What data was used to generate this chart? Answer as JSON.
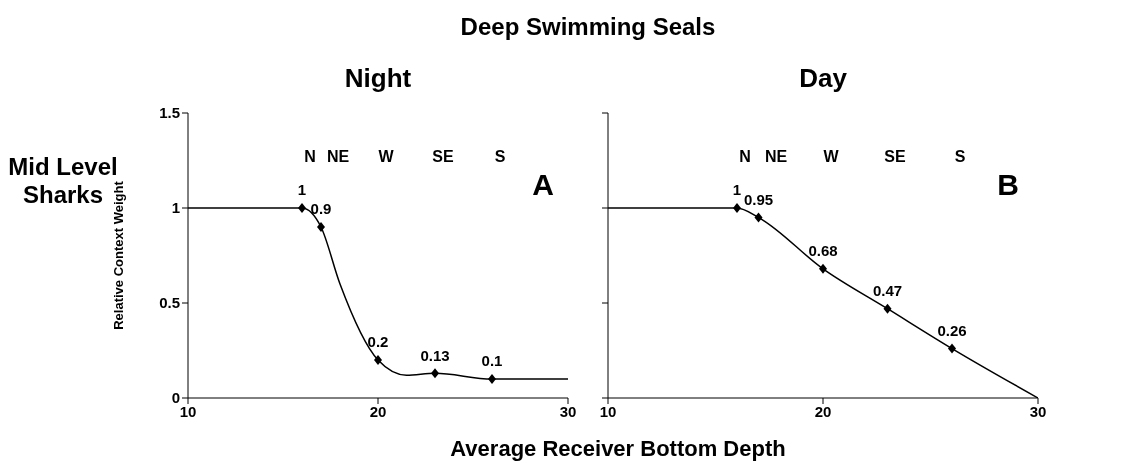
{
  "chart_data": [
    {
      "type": "line",
      "title": "Night",
      "xlabel": "Average Receiver Bottom Depth",
      "ylabel": "Relative Context Weight",
      "xlim": [
        10,
        30
      ],
      "xticks": [
        10,
        20,
        30
      ],
      "ylim": [
        0,
        1.5
      ],
      "yticks": [
        0,
        0.5,
        1,
        1.5
      ],
      "grid": false,
      "legend": false,
      "series": [
        {
          "color": "#000000",
          "marker": "none",
          "x": [
            10,
            16,
            17,
            18,
            20,
            21.5,
            23,
            26,
            30
          ],
          "values": [
            1,
            1,
            0.9,
            0.6,
            0.2,
            0.12,
            0.13,
            0.1,
            0.1
          ]
        },
        {
          "type": "scatter",
          "color": "#000000",
          "marker": "diamond",
          "x": [
            16,
            17,
            20,
            23,
            26
          ],
          "values": [
            1,
            0.9,
            0.2,
            0.13,
            0.1
          ],
          "value_labels": [
            "1",
            "0.9",
            "0.2",
            "0.13",
            "0.1"
          ]
        }
      ],
      "annotations": [
        "Deep Swimming Seals",
        "Mid Level Sharks",
        "A",
        "N",
        "NE",
        "W",
        "SE",
        "S"
      ]
    },
    {
      "type": "line",
      "title": "Day",
      "xlim": [
        10,
        30
      ],
      "xticks": [
        10,
        20,
        30
      ],
      "ylim": [
        0,
        1.5
      ],
      "yticks": [
        0,
        0.5,
        1,
        1.5
      ],
      "tick_labels": "x",
      "grid": false,
      "legend": false,
      "series": [
        {
          "color": "#000000",
          "marker": "none",
          "x": [
            10,
            16,
            17,
            20,
            23,
            26,
            30
          ],
          "values": [
            1,
            1,
            0.95,
            0.68,
            0.47,
            0.26,
            0
          ]
        },
        {
          "type": "scatter",
          "color": "#000000",
          "marker": "diamond",
          "x": [
            16,
            17,
            20,
            23,
            26
          ],
          "values": [
            1,
            0.95,
            0.68,
            0.47,
            0.26
          ],
          "value_labels": [
            "1",
            "0.95",
            "0.68",
            "0.47",
            "0.26"
          ]
        }
      ],
      "annotations": [
        "B",
        "N",
        "NE",
        "W",
        "SE",
        "S"
      ]
    }
  ]
}
